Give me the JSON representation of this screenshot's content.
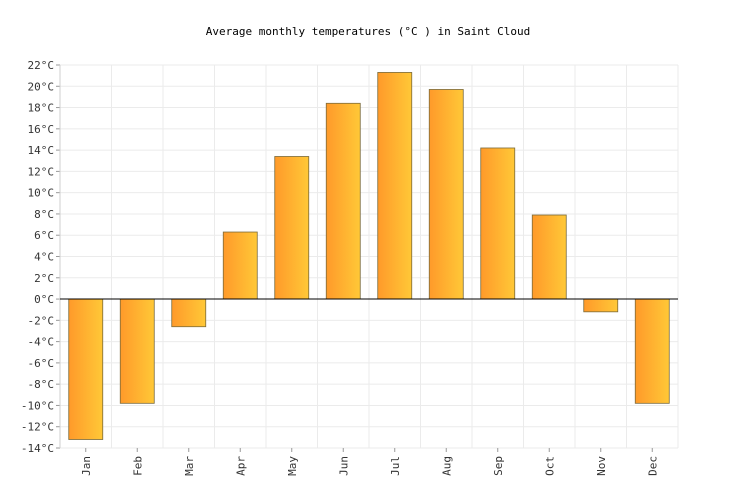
{
  "chart_data": {
    "type": "bar",
    "title": "Average monthly temperatures (°C ) in Saint Cloud",
    "categories": [
      "Jan",
      "Feb",
      "Mar",
      "Apr",
      "May",
      "Jun",
      "Jul",
      "Aug",
      "Sep",
      "Oct",
      "Nov",
      "Dec"
    ],
    "values": [
      -13.2,
      -9.8,
      -2.6,
      6.3,
      13.4,
      18.4,
      21.3,
      19.7,
      14.2,
      7.9,
      -1.2,
      -9.8
    ],
    "ylim": [
      -14,
      22
    ],
    "ytick_step": 2,
    "ytick_suffix": "°C",
    "grid": true,
    "colors": {
      "bar_start": "#ff9a2a",
      "bar_end": "#ffc837",
      "bar_stroke": "#7a6a3a",
      "grid": "#ebebeb",
      "axis": "#000000"
    }
  }
}
